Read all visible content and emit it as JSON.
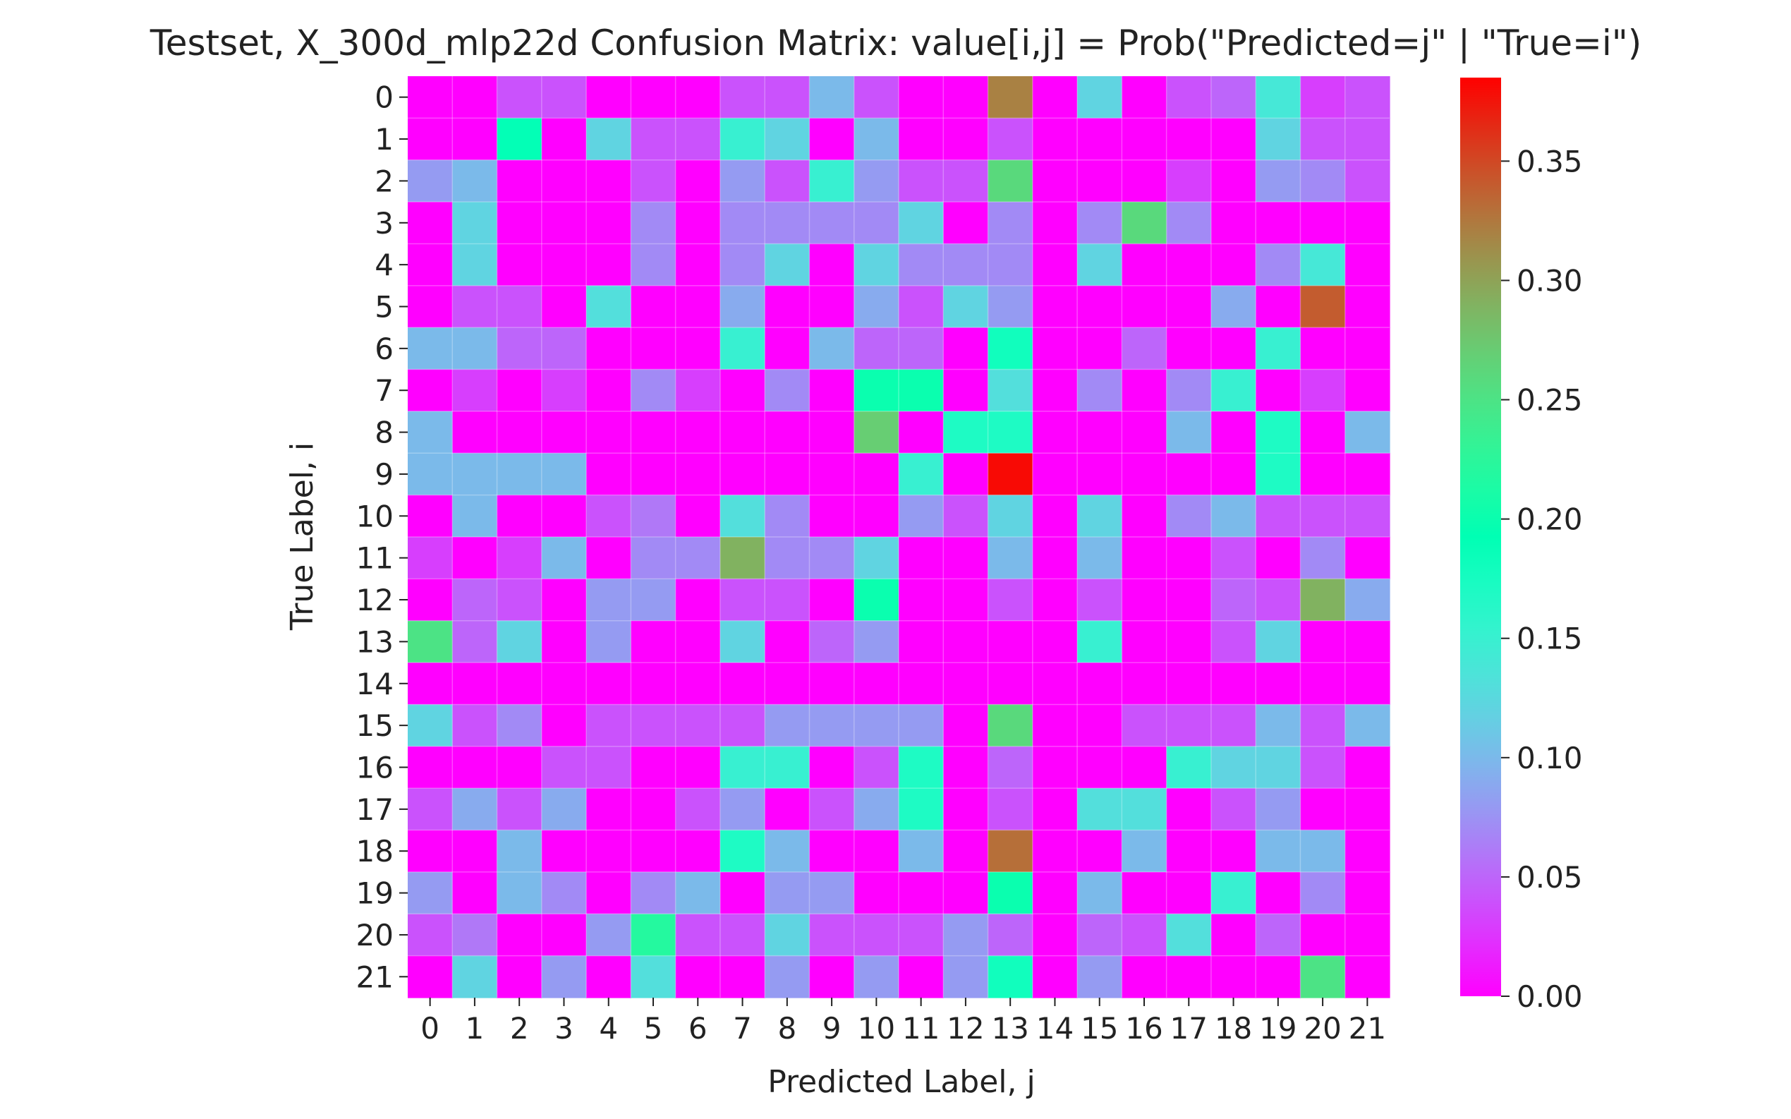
{
  "chart_data": {
    "type": "heatmap",
    "title": "Testset,  X_300d_mlp22d Confusion Matrix: value[i,j] = Prob(\"Predicted=j\" | \"True=i\")",
    "xlabel": "Predicted Label, j",
    "ylabel": "True Label, i",
    "x_tick_labels": [
      "0",
      "1",
      "2",
      "3",
      "4",
      "5",
      "6",
      "7",
      "8",
      "9",
      "10",
      "11",
      "12",
      "13",
      "14",
      "15",
      "16",
      "17",
      "18",
      "19",
      "20",
      "21"
    ],
    "y_tick_labels": [
      "0",
      "1",
      "2",
      "3",
      "4",
      "5",
      "6",
      "7",
      "8",
      "9",
      "10",
      "11",
      "12",
      "13",
      "14",
      "15",
      "16",
      "17",
      "18",
      "19",
      "20",
      "21"
    ],
    "colormap": "rainbow",
    "vmin": 0.0,
    "vmax": 0.385,
    "colorbar_ticks": [
      "0.00",
      "0.05",
      "0.10",
      "0.15",
      "0.20",
      "0.25",
      "0.30",
      "0.35"
    ],
    "colorbar_tick_values": [
      0.0,
      0.05,
      0.1,
      0.15,
      0.2,
      0.25,
      0.3,
      0.35
    ],
    "grid": true,
    "values": [
      [
        0,
        0,
        0.04,
        0.04,
        0,
        0,
        0,
        0.04,
        0.04,
        0.1,
        0.04,
        0,
        0,
        0.32,
        0,
        0.12,
        0,
        0.04,
        0.05,
        0.14,
        0.03,
        0.04
      ],
      [
        0,
        0,
        0.19,
        0,
        0.12,
        0.04,
        0.04,
        0.15,
        0.12,
        0,
        0.1,
        0,
        0,
        0.04,
        0,
        0,
        0,
        0,
        0,
        0.12,
        0.04,
        0.04
      ],
      [
        0.08,
        0.1,
        0,
        0,
        0,
        0.04,
        0,
        0.08,
        0.04,
        0.15,
        0.08,
        0.04,
        0.04,
        0.26,
        0,
        0,
        0,
        0.03,
        0,
        0.08,
        0.07,
        0.04
      ],
      [
        0,
        0.12,
        0,
        0,
        0,
        0.07,
        0,
        0.07,
        0.07,
        0.07,
        0.07,
        0.12,
        0,
        0.07,
        0,
        0.07,
        0.26,
        0.07,
        0,
        0,
        0,
        0
      ],
      [
        0,
        0.12,
        0,
        0,
        0,
        0.07,
        0,
        0.07,
        0.12,
        0,
        0.12,
        0.07,
        0.07,
        0.07,
        0,
        0.12,
        0,
        0,
        0,
        0.07,
        0.14,
        0
      ],
      [
        0,
        0.04,
        0.04,
        0,
        0.13,
        0,
        0,
        0.09,
        0,
        0,
        0.09,
        0.04,
        0.12,
        0.08,
        0,
        0,
        0,
        0,
        0.09,
        0,
        0.34,
        0
      ],
      [
        0.1,
        0.1,
        0.05,
        0.05,
        0,
        0,
        0,
        0.15,
        0,
        0.1,
        0.05,
        0.05,
        0,
        0.18,
        0,
        0,
        0.05,
        0,
        0,
        0.15,
        0,
        0
      ],
      [
        0,
        0.03,
        0,
        0.03,
        0,
        0.07,
        0.03,
        0,
        0.07,
        0,
        0.2,
        0.2,
        0,
        0.13,
        0,
        0.07,
        0,
        0.07,
        0.15,
        0,
        0.03,
        0
      ],
      [
        0.1,
        0,
        0,
        0,
        0,
        0,
        0,
        0,
        0,
        0,
        0.27,
        0,
        0.17,
        0.17,
        0,
        0,
        0,
        0.1,
        0,
        0.17,
        0,
        0.1
      ],
      [
        0.1,
        0.1,
        0.1,
        0.1,
        0,
        0,
        0,
        0,
        0,
        0,
        0,
        0.15,
        0,
        0.38,
        0,
        0,
        0,
        0,
        0,
        0.17,
        0,
        0
      ],
      [
        0,
        0.1,
        0,
        0,
        0.04,
        0.06,
        0,
        0.13,
        0.07,
        0,
        0,
        0.08,
        0.04,
        0.12,
        0,
        0.12,
        0,
        0.07,
        0.1,
        0.04,
        0.04,
        0.04
      ],
      [
        0.03,
        0,
        0.03,
        0.1,
        0,
        0.07,
        0.07,
        0.29,
        0.07,
        0.07,
        0.12,
        0,
        0,
        0.1,
        0,
        0.1,
        0,
        0,
        0.04,
        0,
        0.07,
        0
      ],
      [
        0,
        0.05,
        0.04,
        0,
        0.08,
        0.08,
        0,
        0.04,
        0.04,
        0,
        0.2,
        0,
        0,
        0.04,
        0,
        0.04,
        0,
        0,
        0.05,
        0.04,
        0.29,
        0.09
      ],
      [
        0.25,
        0.05,
        0.12,
        0,
        0.08,
        0,
        0,
        0.12,
        0,
        0.05,
        0.08,
        0,
        0,
        0,
        0,
        0.15,
        0,
        0,
        0.04,
        0.12,
        0,
        0
      ],
      [
        0,
        0,
        0,
        0,
        0,
        0,
        0,
        0,
        0,
        0,
        0,
        0,
        0,
        0,
        0,
        0,
        0,
        0,
        0,
        0,
        0,
        0
      ],
      [
        0.12,
        0.04,
        0.07,
        0,
        0.04,
        0.04,
        0.04,
        0.04,
        0.08,
        0.08,
        0.08,
        0.08,
        0,
        0.26,
        0,
        0,
        0.04,
        0.04,
        0.04,
        0.1,
        0.04,
        0.1
      ],
      [
        0,
        0,
        0,
        0.04,
        0.04,
        0,
        0,
        0.15,
        0.15,
        0,
        0.04,
        0.17,
        0,
        0.05,
        0,
        0,
        0,
        0.15,
        0.12,
        0.12,
        0.04,
        0
      ],
      [
        0.04,
        0.09,
        0.04,
        0.09,
        0,
        0,
        0.04,
        0.08,
        0,
        0.04,
        0.09,
        0.17,
        0,
        0.04,
        0,
        0.13,
        0.13,
        0,
        0.04,
        0.08,
        0,
        0
      ],
      [
        0,
        0,
        0.1,
        0,
        0,
        0,
        0,
        0.17,
        0.1,
        0,
        0,
        0.1,
        0,
        0.33,
        0,
        0,
        0.1,
        0,
        0,
        0.1,
        0.1,
        0
      ],
      [
        0.08,
        0,
        0.1,
        0.07,
        0,
        0.07,
        0.1,
        0,
        0.08,
        0.08,
        0,
        0,
        0,
        0.2,
        0,
        0.1,
        0,
        0,
        0.15,
        0,
        0.07,
        0
      ],
      [
        0.04,
        0.06,
        0,
        0,
        0.08,
        0.22,
        0.04,
        0.04,
        0.12,
        0.04,
        0.04,
        0.04,
        0.08,
        0.05,
        0,
        0.05,
        0.04,
        0.13,
        0,
        0.05,
        0,
        0
      ],
      [
        0,
        0.12,
        0,
        0.08,
        0,
        0.13,
        0,
        0,
        0.08,
        0,
        0.08,
        0,
        0.08,
        0.18,
        0,
        0.08,
        0,
        0,
        0,
        0,
        0.25,
        0
      ]
    ]
  }
}
